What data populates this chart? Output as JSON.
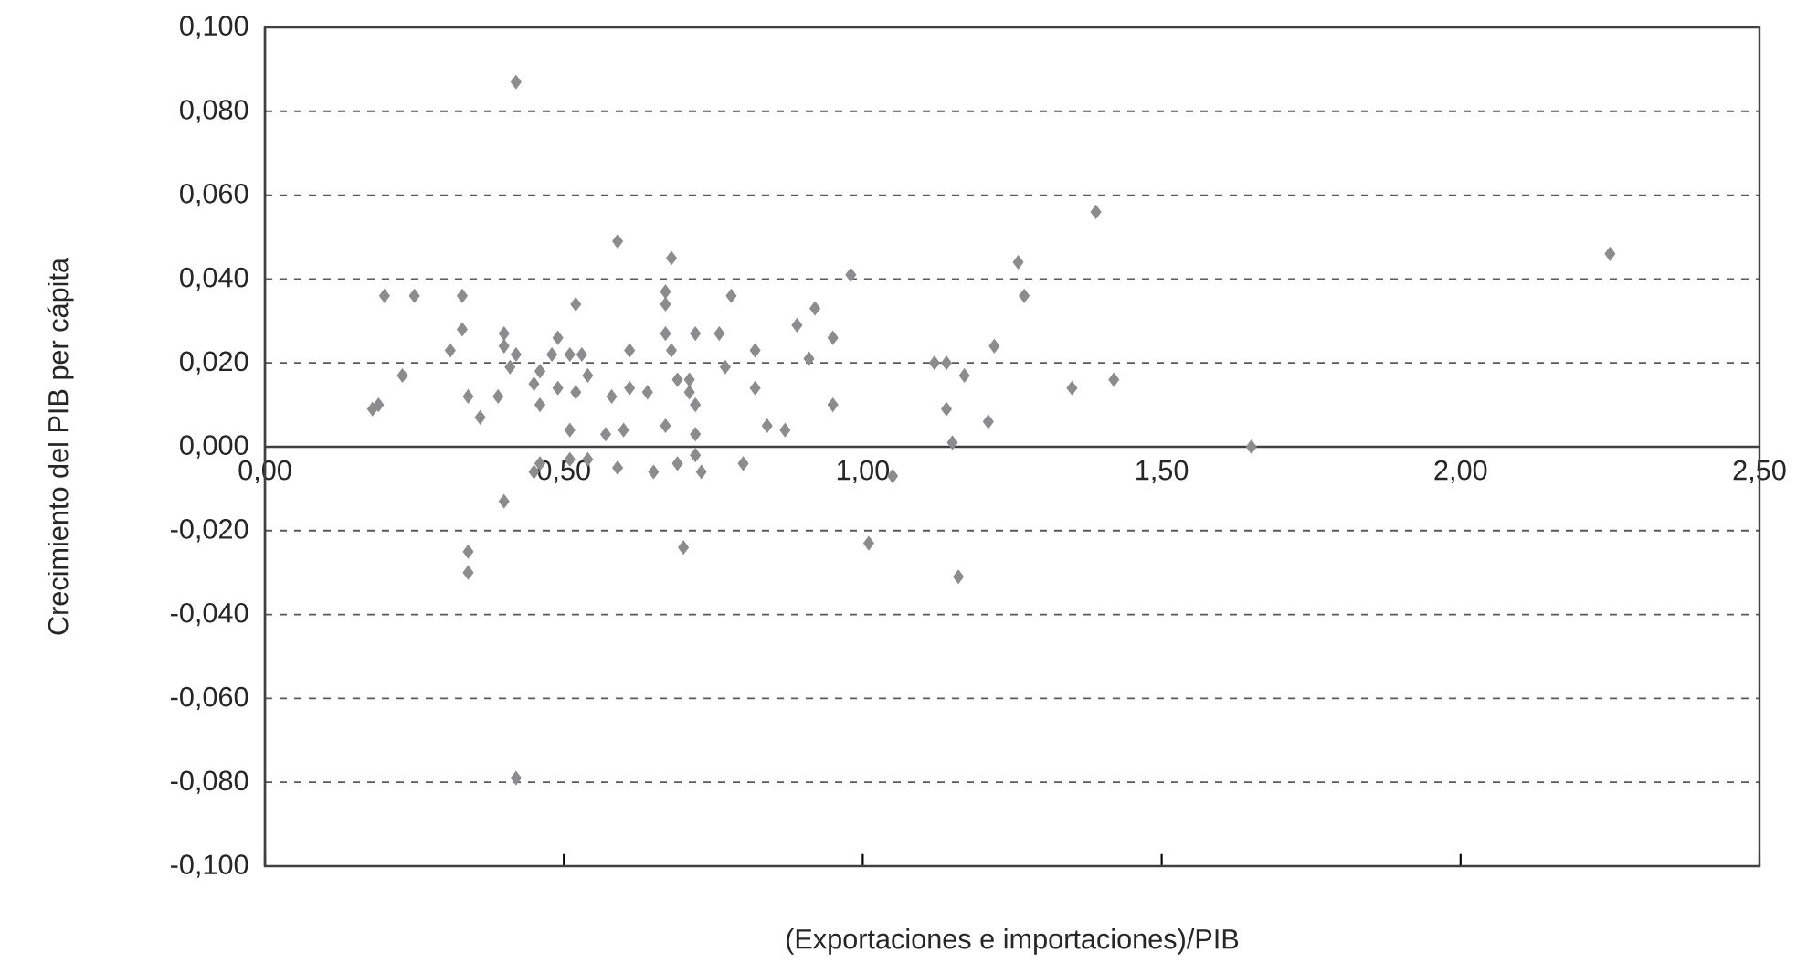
{
  "chart_data": {
    "type": "scatter",
    "xlabel": "(Exportaciones e importaciones)/PIB",
    "ylabel": "Crecimiento del PIB per cápita",
    "x": [
      0.18,
      0.19,
      0.2,
      0.25,
      0.23,
      0.33,
      0.33,
      0.31,
      0.34,
      0.36,
      0.39,
      0.4,
      0.4,
      0.41,
      0.42,
      0.45,
      0.46,
      0.46,
      0.49,
      0.48,
      0.49,
      0.51,
      0.52,
      0.53,
      0.54,
      0.52,
      0.51,
      0.51,
      0.54,
      0.46,
      0.45,
      0.58,
      0.57,
      0.6,
      0.59,
      0.61,
      0.61,
      0.64,
      0.59,
      0.65,
      0.67,
      0.67,
      0.67,
      0.67,
      0.68,
      0.68,
      0.69,
      0.69,
      0.4,
      0.7,
      0.34,
      0.34,
      0.42,
      0.42,
      0.78,
      0.98,
      1.26,
      1.27,
      0.72,
      0.76,
      0.82,
      0.89,
      0.92,
      0.95,
      0.91,
      0.77,
      0.71,
      0.71,
      0.72,
      0.82,
      0.84,
      0.87,
      0.95,
      0.72,
      0.72,
      0.73,
      0.8,
      1.05,
      1.01,
      1.12,
      1.14,
      1.17,
      1.22,
      1.14,
      1.21,
      1.15,
      1.16,
      1.39,
      2.25,
      1.35,
      1.42,
      1.65
    ],
    "values": [
      0.009,
      0.01,
      0.036,
      0.036,
      0.017,
      0.036,
      0.028,
      0.023,
      0.012,
      0.007,
      0.012,
      0.027,
      0.024,
      0.019,
      0.022,
      0.015,
      0.018,
      0.01,
      0.026,
      0.022,
      0.014,
      0.022,
      0.034,
      0.022,
      0.017,
      0.013,
      0.004,
      -0.003,
      -0.003,
      -0.004,
      -0.006,
      0.012,
      0.003,
      0.004,
      -0.005,
      0.023,
      0.014,
      0.013,
      0.049,
      -0.006,
      0.005,
      0.037,
      0.034,
      0.027,
      0.045,
      0.023,
      0.016,
      -0.004,
      -0.013,
      -0.024,
      -0.025,
      -0.03,
      -0.079,
      0.087,
      0.036,
      0.041,
      0.044,
      0.036,
      0.027,
      0.027,
      0.023,
      0.029,
      0.033,
      0.026,
      0.021,
      0.019,
      0.016,
      0.013,
      0.01,
      0.014,
      0.005,
      0.004,
      0.01,
      0.003,
      -0.002,
      -0.006,
      -0.004,
      -0.007,
      -0.023,
      0.02,
      0.02,
      0.017,
      0.024,
      0.009,
      0.006,
      0.001,
      -0.031,
      0.056,
      0.046,
      0.014,
      0.016,
      0.0
    ],
    "color": "#8c8c8e",
    "marker": "diamond",
    "grid": "y",
    "xlim": [
      0,
      2.5
    ],
    "ylim": [
      -0.1,
      0.1
    ],
    "xticks": [
      {
        "value": 0,
        "label": "0,00"
      },
      {
        "value": 0.5,
        "label": "0,50"
      },
      {
        "value": 1,
        "label": "1,00"
      },
      {
        "value": 1.5,
        "label": "1,50"
      },
      {
        "value": 2,
        "label": "2,00"
      },
      {
        "value": 2.5,
        "label": "2,50"
      }
    ],
    "yticks": [
      {
        "value": -0.1,
        "label": "-0,100"
      },
      {
        "value": -0.08,
        "label": "-0,080"
      },
      {
        "value": -0.06,
        "label": "-0,060"
      },
      {
        "value": -0.04,
        "label": "-0,040"
      },
      {
        "value": -0.02,
        "label": "-0,020"
      },
      {
        "value": 0,
        "label": "0,000"
      },
      {
        "value": 0.02,
        "label": "0,020"
      },
      {
        "value": 0.04,
        "label": "0,040"
      },
      {
        "value": 0.06,
        "label": "0,060"
      },
      {
        "value": 0.08,
        "label": "0,080"
      },
      {
        "value": 0.1,
        "label": "0,100"
      }
    ]
  }
}
